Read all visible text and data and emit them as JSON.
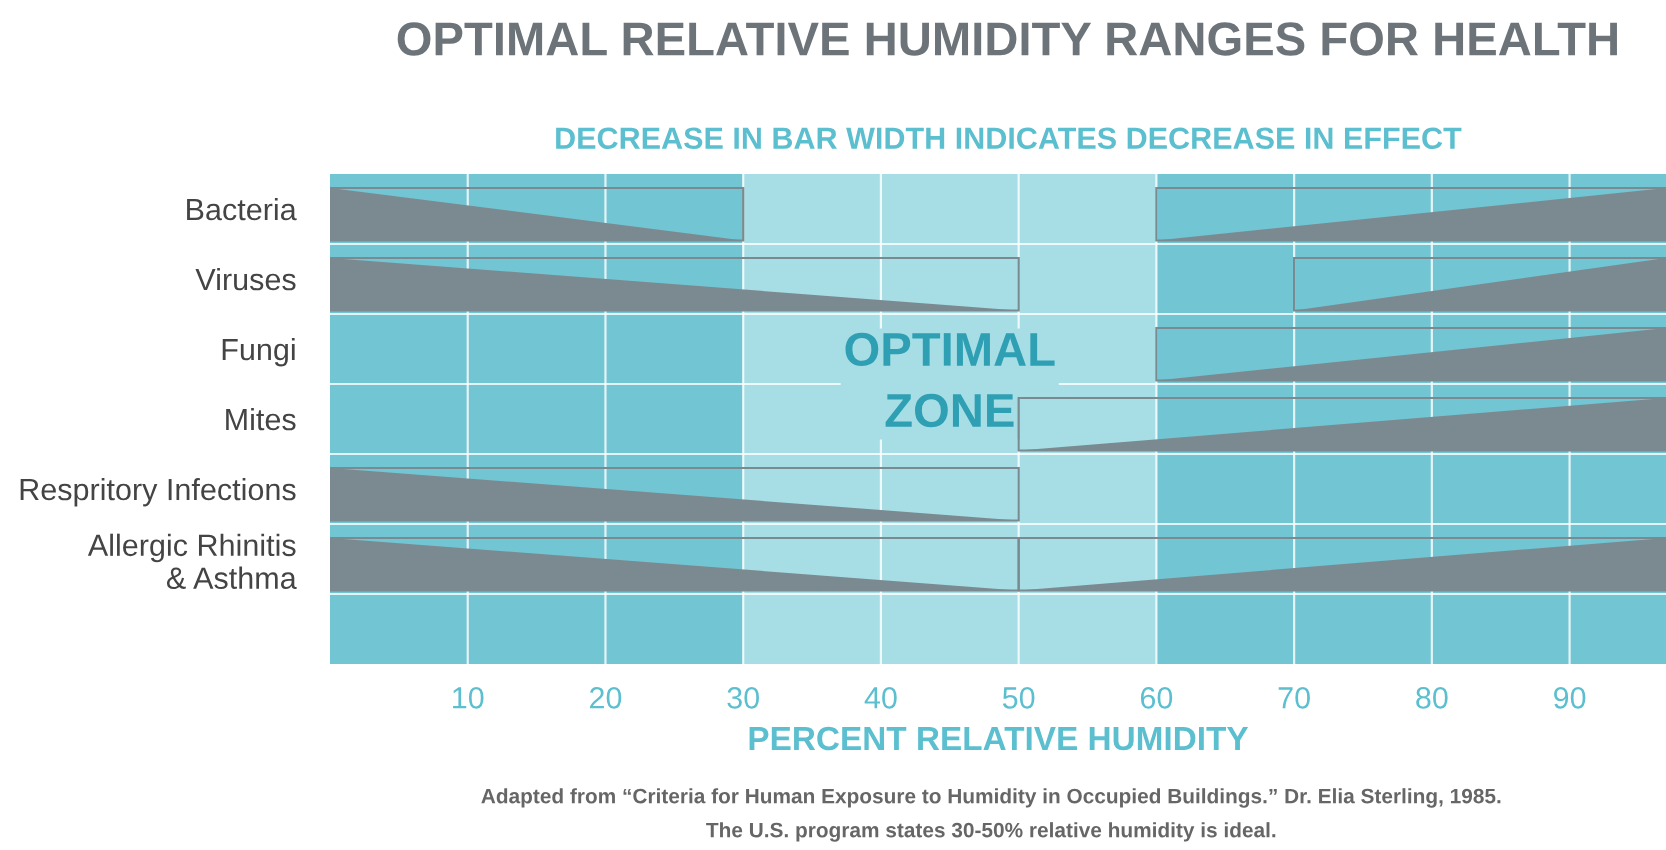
{
  "chart_data": {
    "type": "bar",
    "orientation": "horizontal",
    "title": "OPTIMAL RELATIVE HUMIDITY RANGES FOR HEALTH",
    "subtitle": "DECREASE IN BAR WIDTH INDICATES DECREASE IN EFFECT",
    "xlabel": "PERCENT RELATIVE HUMIDITY",
    "categories": [
      "Bacteria",
      "Viruses",
      "Fungi",
      "Mites",
      "Respritory Infections",
      "Allergic Rhinitis\n& Asthma",
      null
    ],
    "series": [
      {
        "color": "#7a8a90",
        "base": [
          0,
          0,
          null,
          null,
          0,
          0,
          null
        ],
        "values": [
          30,
          50,
          null,
          null,
          50,
          50,
          null
        ]
      },
      {
        "color": "#7a8a90",
        "base": [
          60,
          70,
          60,
          50,
          null,
          50,
          null
        ],
        "values": [
          37,
          27,
          37,
          47,
          null,
          47,
          null
        ]
      }
    ],
    "xlim": [
      0,
      97
    ],
    "xticks": [
      10,
      20,
      30,
      40,
      50,
      60,
      70,
      80,
      90
    ],
    "grid": true,
    "bands": [
      {
        "axis": "x",
        "from": 0,
        "to": 30,
        "label": null,
        "color": "#72c5d3"
      },
      {
        "axis": "x",
        "from": 30,
        "to": 60,
        "label": "OPTIMAL\nZONE",
        "color": "#a7dee6"
      },
      {
        "axis": "x",
        "from": 60,
        "to": 97,
        "label": null,
        "color": "#72c5d3"
      }
    ],
    "annotations": [
      "Adapted from “Criteria for Human Exposure to Humidity in Occupied Buildings.” Dr. Elia Sterling, 1985.",
      "The U.S. program states 30-50% relative humidity is ideal."
    ]
  }
}
